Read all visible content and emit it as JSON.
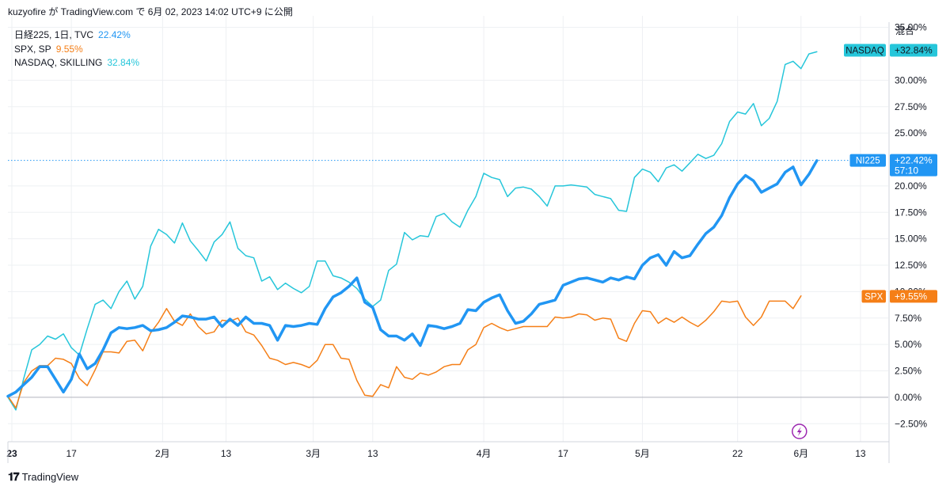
{
  "header": {
    "title": "kuzyofire が TradingView.com で 6月 02, 2023 14:02 UTC+9 に公開"
  },
  "scale_mode_label": "混合",
  "footer": {
    "brand": "TradingView"
  },
  "colors": {
    "nikkei": "#2196f3",
    "spx": "#f57f17",
    "nasdaq": "#26c6da",
    "grid": "#eef0f3",
    "zero": "#b2b5be"
  },
  "legend": [
    {
      "name": "日経225, 1日, TVC",
      "value": "22.42%",
      "color": "#2196f3"
    },
    {
      "name": "SPX, SP",
      "value": "9.55%",
      "color": "#f57f17"
    },
    {
      "name": "NASDAQ, SKILLING",
      "value": "32.84%",
      "color": "#26c6da"
    }
  ],
  "price_tags": [
    {
      "label": "NASDAQ",
      "value": "+32.84%",
      "color": "#26c6da",
      "y": 32.84
    },
    {
      "label": "NI225",
      "value": "+22.42%",
      "sub": "57:10",
      "color": "#2196f3",
      "y": 22.42
    },
    {
      "label": "SPX",
      "value": "+9.55%",
      "color": "#f57f17",
      "y": 9.55
    }
  ],
  "chart_data": {
    "type": "line",
    "ylim": [
      -4.2,
      35.5
    ],
    "yticks": [
      "35.00%",
      "30.00%",
      "27.50%",
      "25.00%",
      "20.00%",
      "17.50%",
      "15.00%",
      "12.50%",
      "10.00%",
      "7.50%",
      "5.00%",
      "2.50%",
      "0.00%",
      "−2.50%"
    ],
    "ytick_values": [
      35,
      30,
      27.5,
      25,
      20,
      17.5,
      15,
      12.5,
      10,
      7.5,
      5,
      2.5,
      0,
      -2.5
    ],
    "xlim": [
      0,
      111
    ],
    "xticks": [
      {
        "label": "23",
        "x": 0.5
      },
      {
        "label": "17",
        "x": 8
      },
      {
        "label": "2月",
        "x": 19.5
      },
      {
        "label": "13",
        "x": 27.5
      },
      {
        "label": "3月",
        "x": 38.5
      },
      {
        "label": "13",
        "x": 46
      },
      {
        "label": "4月",
        "x": 60
      },
      {
        "label": "17",
        "x": 70
      },
      {
        "label": "5月",
        "x": 80
      },
      {
        "label": "22",
        "x": 92
      },
      {
        "label": "6月",
        "x": 100
      },
      {
        "label": "13",
        "x": 107.5
      }
    ],
    "series": [
      {
        "name": "NASDAQ",
        "values": [
          0,
          -1.2,
          1.8,
          4.5,
          5,
          5.8,
          5.5,
          6,
          4.7,
          4,
          6.5,
          8.8,
          9.2,
          8.4,
          10,
          11,
          9.3,
          10.5,
          14.3,
          15.9,
          15.4,
          14.6,
          16.5,
          14.8,
          13.9,
          12.9,
          14.7,
          15.4,
          16.6,
          14.1,
          13.4,
          13.2,
          11,
          11.4,
          10.2,
          10.8,
          10.3,
          9.9,
          10.5,
          12.9,
          12.9,
          11.5,
          11.3,
          10.9,
          10.3,
          9.3,
          8.6,
          9.2,
          12,
          12.6,
          15.6,
          14.9,
          15.3,
          15.2,
          17.1,
          17.4,
          16.6,
          16.1,
          17.7,
          19,
          21.2,
          20.8,
          20.6,
          19,
          19.8,
          19.9,
          19.7,
          19,
          18.1,
          20,
          20,
          20.1,
          20,
          19.9,
          19.2,
          19,
          18.8,
          17.7,
          17.6,
          20.8,
          21.6,
          21.3,
          20.4,
          21.7,
          22,
          21.4,
          22.2,
          23,
          22.6,
          22.9,
          24,
          26.1,
          27,
          26.8,
          27.8,
          25.7,
          26.4,
          28,
          31.5,
          31.8,
          31.1,
          32.5,
          32.7
        ]
      },
      {
        "name": "NI225",
        "values": [
          0.1,
          0.5,
          1.2,
          1.9,
          2.9,
          2.9,
          1.7,
          0.5,
          1.7,
          4.1,
          2.7,
          3.2,
          4.5,
          6.1,
          6.6,
          6.5,
          6.6,
          6.8,
          6.3,
          6.4,
          6.6,
          7.1,
          7.7,
          7.6,
          7.4,
          7.4,
          7.6,
          6.7,
          7.4,
          6.8,
          7.6,
          7,
          7,
          6.8,
          5.4,
          6.8,
          6.7,
          6.8,
          7,
          6.9,
          8.4,
          9.5,
          9.9,
          10.5,
          11.3,
          9,
          8.5,
          6.4,
          5.8,
          5.8,
          5.4,
          6,
          4.9,
          6.8,
          6.7,
          6.5,
          6.7,
          7,
          8.3,
          8.2,
          9,
          9.4,
          9.7,
          8.2,
          7,
          7.2,
          7.9,
          8.8,
          9,
          9.2,
          10.6,
          10.9,
          11.2,
          11.3,
          11.1,
          10.9,
          11.3,
          11.1,
          11.4,
          11.2,
          12.5,
          13.2,
          13.5,
          12.5,
          13.8,
          13.2,
          13.4,
          14.5,
          15.5,
          16.1,
          17.2,
          18.9,
          20.2,
          21,
          20.5,
          19.4,
          19.8,
          20.2,
          21.3,
          21.8,
          20.1,
          21.1,
          22.4
        ]
      },
      {
        "name": "SPX",
        "values": [
          0.1,
          -1,
          1.4,
          2.5,
          3,
          3,
          3.7,
          3.6,
          3.2,
          1.8,
          1.1,
          2.6,
          4.3,
          4.3,
          4.2,
          5.3,
          5.4,
          4.4,
          6.1,
          7.1,
          8.4,
          7.2,
          6.8,
          7.9,
          6.7,
          6,
          6.2,
          7.3,
          7.2,
          7.5,
          6.2,
          5.9,
          4.9,
          3.7,
          3.5,
          3.1,
          3.3,
          3.1,
          2.8,
          3.5,
          5,
          5,
          3.7,
          3.6,
          1.6,
          0.2,
          0.1,
          1.2,
          0.9,
          2.9,
          1.9,
          1.7,
          2.3,
          2.1,
          2.4,
          2.9,
          3.1,
          3.1,
          4.5,
          5,
          6.6,
          7,
          6.6,
          6.3,
          6.5,
          6.7,
          6.7,
          6.7,
          6.7,
          7.6,
          7.5,
          7.6,
          7.9,
          7.8,
          7.3,
          7.5,
          7.4,
          5.6,
          5.3,
          7,
          8.2,
          8.1,
          7,
          7.5,
          7.1,
          7.6,
          7.1,
          6.7,
          7.3,
          8.1,
          9.1,
          9,
          9.1,
          7.6,
          6.8,
          7.6,
          9.1,
          9.1,
          9.1,
          8.4,
          9.6
        ]
      }
    ]
  }
}
